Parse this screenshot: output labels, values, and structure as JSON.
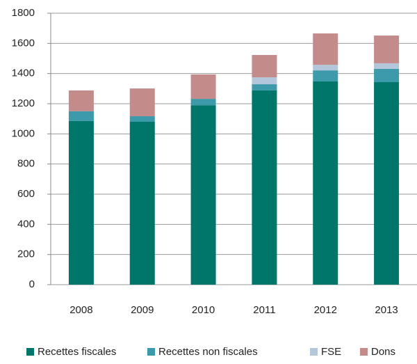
{
  "chart_data": {
    "type": "stacked_bar",
    "categories": [
      "2008",
      "2009",
      "2010",
      "2011",
      "2012",
      "2013"
    ],
    "series": [
      {
        "name": "Recettes fiscales",
        "color": "#00766a",
        "values": [
          1085,
          1080,
          1190,
          1288,
          1348,
          1343
        ]
      },
      {
        "name": "Recettes non fiscales",
        "color": "#3c9aaa",
        "values": [
          65,
          37,
          42,
          41,
          73,
          88
        ]
      },
      {
        "name": "FSE",
        "color": "#b3c6da",
        "values": [
          0,
          0,
          0,
          46,
          37,
          37
        ]
      },
      {
        "name": "Dons",
        "color": "#c48b8b",
        "values": [
          138,
          184,
          162,
          148,
          208,
          184
        ]
      }
    ],
    "ylim": [
      0,
      1800
    ],
    "yticks": [
      0,
      200,
      400,
      600,
      800,
      1000,
      1200,
      1400,
      1600,
      1800
    ],
    "grid": true,
    "legend": "bottom"
  }
}
